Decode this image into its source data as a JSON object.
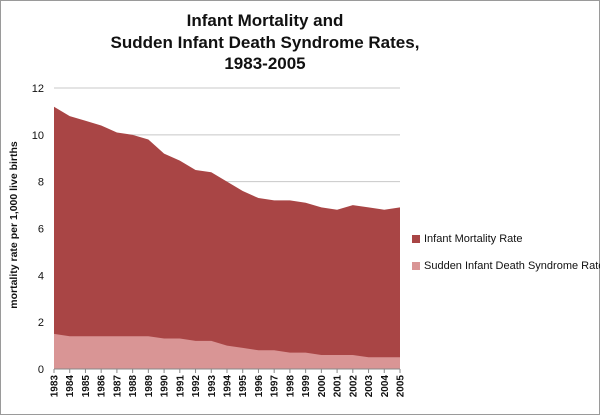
{
  "chart_data": {
    "type": "area",
    "title_lines": [
      "Infant Mortality and",
      "Sudden Infant Death Syndrome Rates,",
      "1983-2005"
    ],
    "xlabel": "",
    "ylabel": "mortality rate per 1,000 live births",
    "ylim": [
      0,
      12
    ],
    "yticks": [
      "0",
      "2",
      "4",
      "6",
      "8",
      "10",
      "12"
    ],
    "categories": [
      "1983",
      "1984",
      "1985",
      "1986",
      "1987",
      "1988",
      "1989",
      "1990",
      "1991",
      "1992",
      "1993",
      "1994",
      "1995",
      "1996",
      "1997",
      "1998",
      "1999",
      "2000",
      "2001",
      "2002",
      "2003",
      "2004",
      "2005"
    ],
    "grid": true,
    "legend_position": "right",
    "series": [
      {
        "name": "Infant Mortality Rate",
        "color": "#a94545",
        "values": [
          11.2,
          10.8,
          10.6,
          10.4,
          10.1,
          10.0,
          9.8,
          9.2,
          8.9,
          8.5,
          8.4,
          8.0,
          7.6,
          7.3,
          7.2,
          7.2,
          7.1,
          6.9,
          6.8,
          7.0,
          6.9,
          6.8,
          6.9
        ]
      },
      {
        "name": "Sudden Infant Death Syndrome Rate",
        "color": "#d99595",
        "values": [
          1.5,
          1.4,
          1.4,
          1.4,
          1.4,
          1.4,
          1.4,
          1.3,
          1.3,
          1.2,
          1.2,
          1.0,
          0.9,
          0.8,
          0.8,
          0.7,
          0.7,
          0.6,
          0.6,
          0.6,
          0.5,
          0.5,
          0.5
        ]
      }
    ]
  }
}
